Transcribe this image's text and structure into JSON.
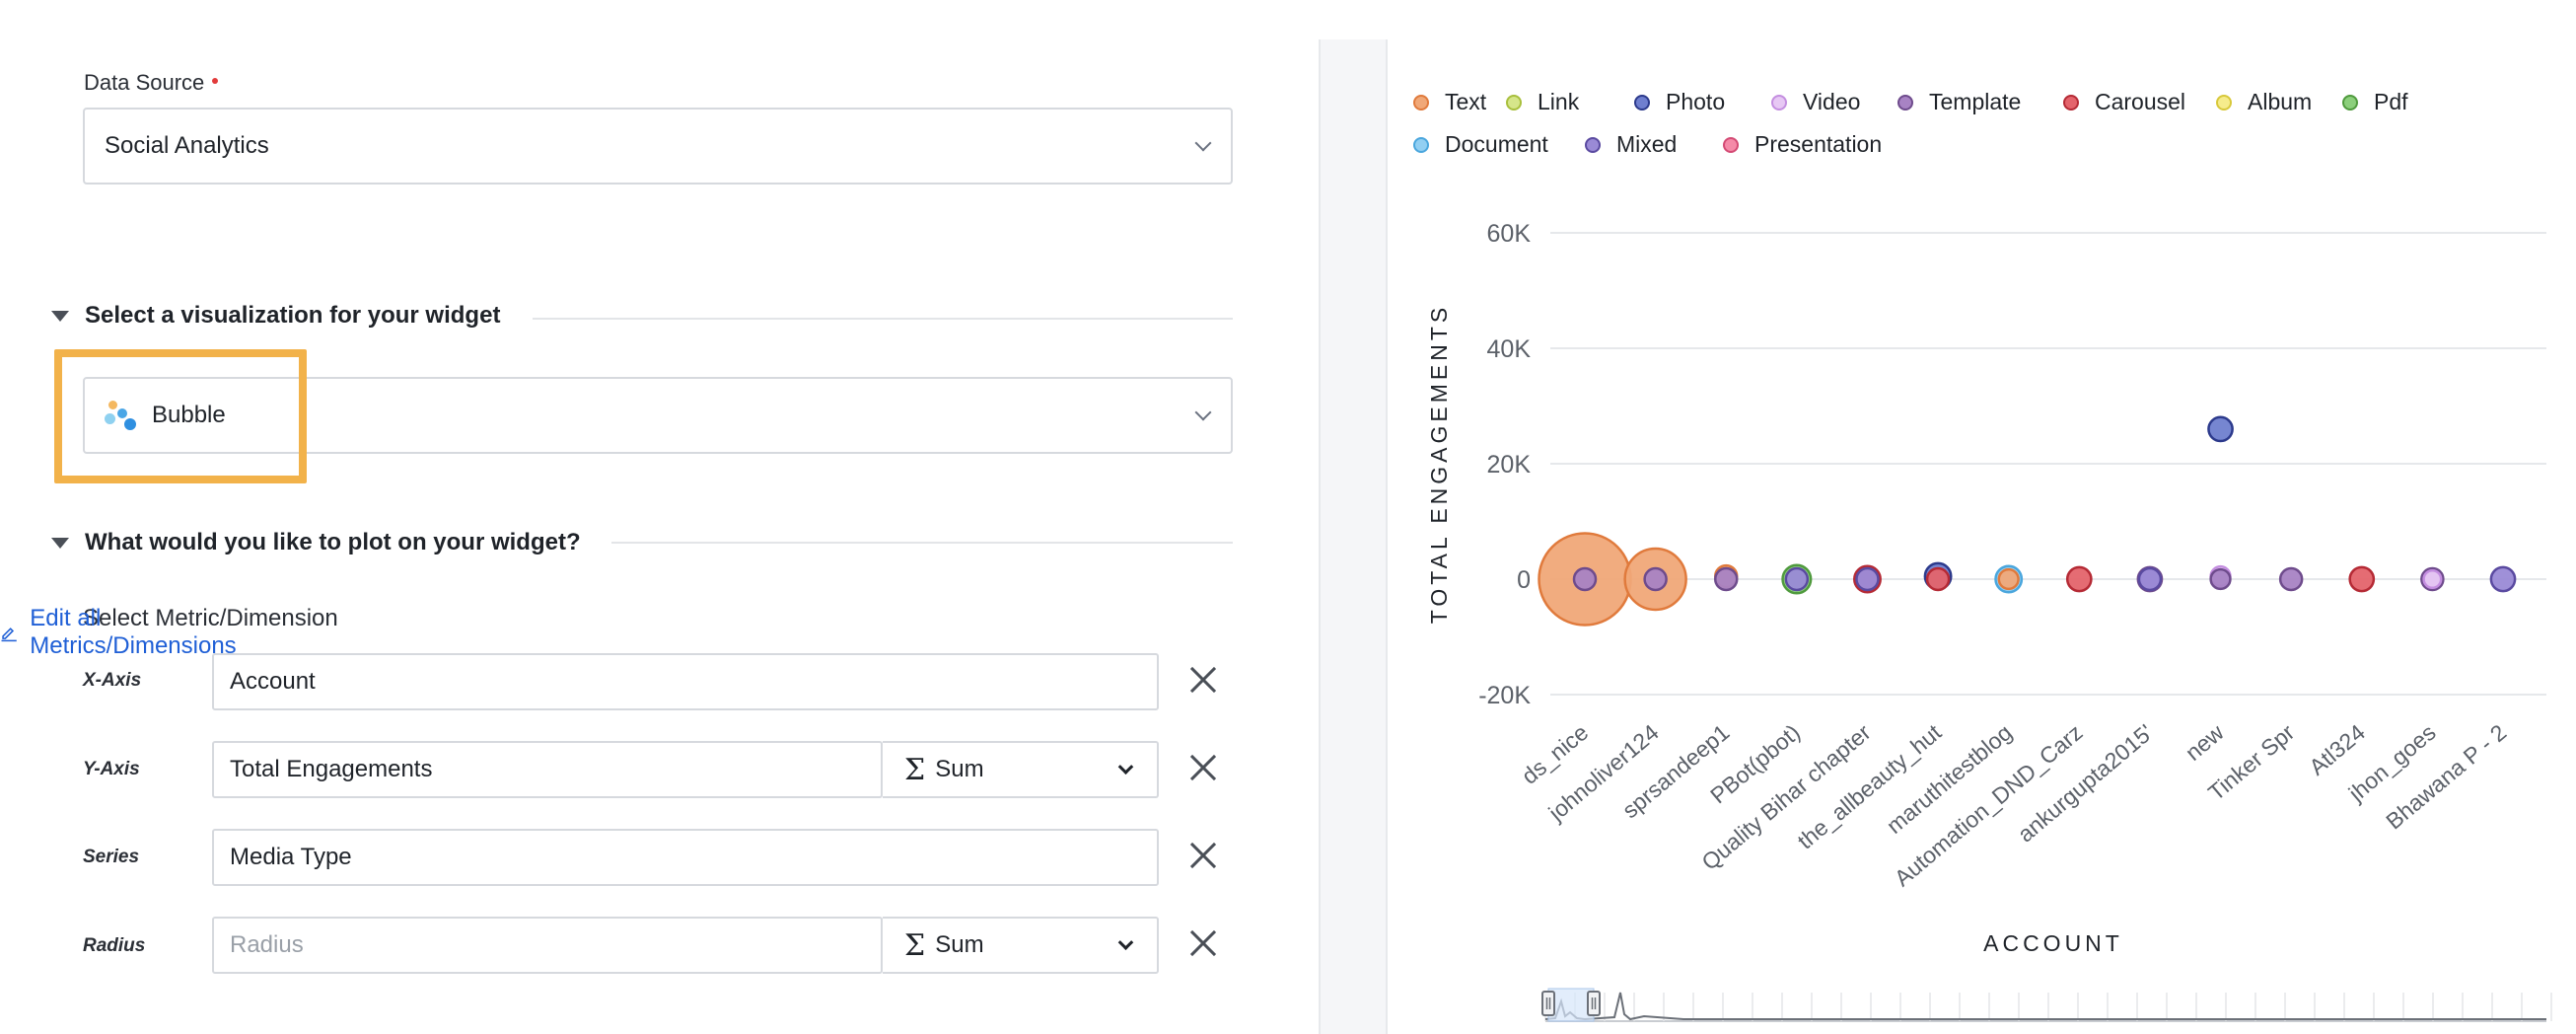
{
  "data_source": {
    "label": "Data Source",
    "value": "Social Analytics"
  },
  "visualization": {
    "section_title": "Select a visualization for your widget",
    "value": "Bubble",
    "highlight_color": "#f2b24a"
  },
  "plot": {
    "section_title": "What would you like to plot on your widget?",
    "metric_label": "Select Metric/Dimension",
    "edit_link": "Edit all Metrics/Dimensions",
    "rows": [
      {
        "axis": "X-Axis",
        "value": "Account",
        "placeholder": "",
        "aggregation": ""
      },
      {
        "axis": "Y-Axis",
        "value": "Total Engagements",
        "placeholder": "",
        "aggregation": "Sum"
      },
      {
        "axis": "Series",
        "value": "Media Type",
        "placeholder": "",
        "aggregation": ""
      },
      {
        "axis": "Radius",
        "value": "",
        "placeholder": "Radius",
        "aggregation": "Sum"
      }
    ],
    "sigma": "Σ"
  },
  "colors": {
    "accent_link": "#1f5fd6",
    "required": "#e23b3b"
  },
  "chart_data": {
    "type": "scatter",
    "subtype": "bubble",
    "xlabel": "ACCOUNT",
    "ylabel": "TOTAL ENGAGEMENTS",
    "ylim": [
      -20000,
      60000
    ],
    "yticks": [
      60000,
      40000,
      20000,
      0,
      -20000
    ],
    "ytick_labels": [
      "60K",
      "40K",
      "20K",
      "0",
      "-20K"
    ],
    "grid": true,
    "legend_position": "top",
    "categories": [
      "ds_nice",
      "johnoliver124",
      "sprsandeep1",
      "PBot(pbot)",
      "Quality Bihar chapter",
      "the_allbeauty_hut",
      "maruthitestblog",
      "Automation_DND_Carz",
      "ankurgupta2015'",
      "new",
      "Tinker Spr",
      "Atl324",
      "jhon_goes",
      "Bhawana P - 2"
    ],
    "series": [
      {
        "name": "Text",
        "fill": "#f0a878",
        "stroke": "#e07a3c"
      },
      {
        "name": "Link",
        "fill": "#d6e68a",
        "stroke": "#a8bf3c"
      },
      {
        "name": "Photo",
        "fill": "#6f7fcf",
        "stroke": "#2c3a8c"
      },
      {
        "name": "Video",
        "fill": "#e7c8f4",
        "stroke": "#c48ee0"
      },
      {
        "name": "Template",
        "fill": "#a883c4",
        "stroke": "#6e4b8c"
      },
      {
        "name": "Carousel",
        "fill": "#e4646c",
        "stroke": "#b52a35"
      },
      {
        "name": "Album",
        "fill": "#f6ec8c",
        "stroke": "#d8c83a"
      },
      {
        "name": "Pdf",
        "fill": "#8ccf7c",
        "stroke": "#4f9a3d"
      },
      {
        "name": "Document",
        "fill": "#92cff2",
        "stroke": "#4aa6dd"
      },
      {
        "name": "Mixed",
        "fill": "#9a8ad6",
        "stroke": "#5a4aa0"
      },
      {
        "name": "Presentation",
        "fill": "#f58aa8",
        "stroke": "#d44a74"
      }
    ],
    "points": [
      {
        "category": "ds_nice",
        "series": "Text",
        "y": 0,
        "size": 30
      },
      {
        "category": "ds_nice",
        "series": "Template",
        "y": 0,
        "size": 1
      },
      {
        "category": "johnoliver124",
        "series": "Text",
        "y": 0,
        "size": 20
      },
      {
        "category": "johnoliver124",
        "series": "Template",
        "y": 0,
        "size": 1
      },
      {
        "category": "sprsandeep1",
        "series": "Text",
        "y": 500,
        "size": 1
      },
      {
        "category": "sprsandeep1",
        "series": "Template",
        "y": 0,
        "size": 1
      },
      {
        "category": "PBot(pbot)",
        "series": "Pdf",
        "y": 0,
        "size": 1.3
      },
      {
        "category": "PBot(pbot)",
        "series": "Mixed",
        "y": 0,
        "size": 1
      },
      {
        "category": "Quality Bihar chapter",
        "series": "Carousel",
        "y": 0,
        "size": 1.2
      },
      {
        "category": "Quality Bihar chapter",
        "series": "Mixed",
        "y": 0,
        "size": 1
      },
      {
        "category": "the_allbeauty_hut",
        "series": "Photo",
        "y": 500,
        "size": 1.2
      },
      {
        "category": "the_allbeauty_hut",
        "series": "Carousel",
        "y": 0,
        "size": 1
      },
      {
        "category": "maruthitestblog",
        "series": "Document",
        "y": 0,
        "size": 1.2
      },
      {
        "category": "maruthitestblog",
        "series": "Text",
        "y": 0,
        "size": 0.9
      },
      {
        "category": "Automation_DND_Carz",
        "series": "Carousel",
        "y": 0,
        "size": 1.1
      },
      {
        "category": "ankurgupta2015'",
        "series": "Template",
        "y": 0,
        "size": 1.1
      },
      {
        "category": "ankurgupta2015'",
        "series": "Mixed",
        "y": 0,
        "size": 1
      },
      {
        "category": "new",
        "series": "Photo",
        "y": 26000,
        "size": 1.1
      },
      {
        "category": "new",
        "series": "Video",
        "y": 500,
        "size": 0.9
      },
      {
        "category": "new",
        "series": "Template",
        "y": 0,
        "size": 0.9
      },
      {
        "category": "Tinker Spr",
        "series": "Template",
        "y": 0,
        "size": 1
      },
      {
        "category": "Atl324",
        "series": "Carousel",
        "y": 0,
        "size": 1.1
      },
      {
        "category": "jhon_goes",
        "series": "Template",
        "y": 0,
        "size": 1
      },
      {
        "category": "jhon_goes",
        "series": "Video",
        "y": 0,
        "size": 0.8
      },
      {
        "category": "Bhawana P - 2",
        "series": "Mixed",
        "y": 0,
        "size": 1.1
      }
    ]
  }
}
